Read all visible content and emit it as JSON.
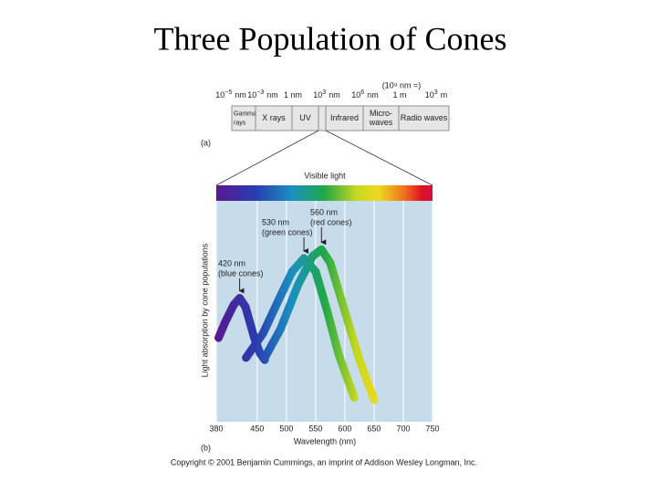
{
  "title": "Three Population of Cones",
  "spectrum": {
    "panel": "(a)",
    "note": "(10⁹ nm =)",
    "scale_labels": [
      {
        "base": "10",
        "exp": "−5",
        "unit": "nm"
      },
      {
        "base": "10",
        "exp": "−3",
        "unit": "nm"
      },
      {
        "text": "1 nm"
      },
      {
        "base": "10",
        "exp": "3",
        "unit": "nm"
      },
      {
        "base": "10",
        "exp": "6",
        "unit": "nm"
      },
      {
        "text": "1 m"
      },
      {
        "base": "10",
        "exp": "3",
        "unit": "m"
      }
    ],
    "bands": [
      [
        "Gamma",
        "rays"
      ],
      [
        "X rays"
      ],
      [
        "UV"
      ],
      [],
      [
        "Infrared"
      ],
      [
        "Micro-",
        "waves"
      ],
      [
        "Radio waves"
      ]
    ],
    "visible_label": "Visible light"
  },
  "chart_data": {
    "type": "line",
    "panel": "(b)",
    "xlabel": "Wavelength (nm)",
    "ylabel": "Light absorption by cone populations",
    "xlim": [
      380,
      750
    ],
    "xticks": [
      380,
      450,
      500,
      550,
      600,
      650,
      700,
      750
    ],
    "ylim": [
      0,
      1
    ],
    "grid": true,
    "series": [
      {
        "annotation": [
          "420 nm",
          "(blue cones)"
        ],
        "peak": 420,
        "x": [
          384,
          395,
          410,
          420,
          430,
          445,
          455,
          463
        ],
        "values": [
          0.38,
          0.45,
          0.53,
          0.56,
          0.52,
          0.38,
          0.31,
          0.28
        ]
      },
      {
        "annotation": [
          "530 nm",
          "(green cones)"
        ],
        "peak": 530,
        "x": [
          431,
          460,
          490,
          510,
          530,
          550,
          570,
          590,
          616
        ],
        "values": [
          0.29,
          0.4,
          0.57,
          0.68,
          0.74,
          0.68,
          0.5,
          0.3,
          0.11
        ]
      },
      {
        "annotation": [
          "560 nm",
          "(red cones)"
        ],
        "peak": 560,
        "x": [
          463,
          490,
          520,
          545,
          560,
          575,
          600,
          625,
          650
        ],
        "values": [
          0.29,
          0.42,
          0.62,
          0.75,
          0.78,
          0.72,
          0.5,
          0.28,
          0.1
        ]
      }
    ]
  },
  "copyright": "Copyright © 2001 Benjamin Cummings, an imprint of Addison Wesley Longman, Inc."
}
